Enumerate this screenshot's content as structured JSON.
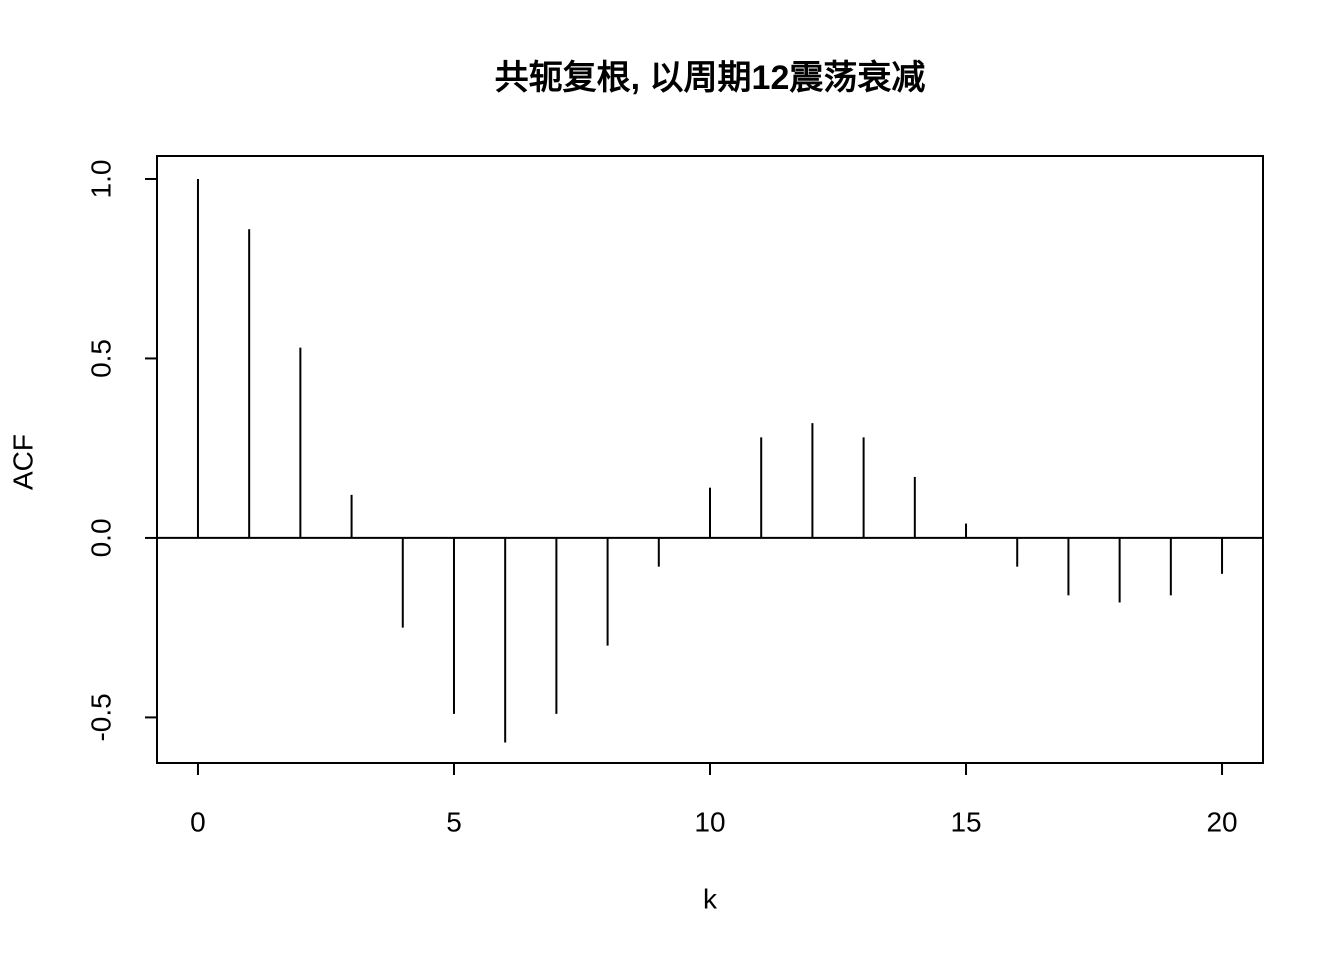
{
  "chart_data": {
    "type": "stem",
    "title": "共轭复根, 以周期12震荡衰减",
    "x_label": "k",
    "y_label": "ACF",
    "x": [
      0,
      1,
      2,
      3,
      4,
      5,
      6,
      7,
      8,
      9,
      10,
      11,
      12,
      13,
      14,
      15,
      16,
      17,
      18,
      19,
      20
    ],
    "values": [
      1.0,
      0.86,
      0.53,
      0.12,
      -0.25,
      -0.49,
      -0.57,
      -0.49,
      -0.3,
      -0.08,
      0.14,
      0.28,
      0.32,
      0.28,
      0.17,
      0.04,
      -0.08,
      -0.16,
      -0.18,
      -0.16,
      -0.1
    ],
    "color": "#000000",
    "xlim": [
      -0.8,
      20.8
    ],
    "ylim": [
      -0.627,
      1.064
    ],
    "xticks": [
      0,
      5,
      10,
      15,
      20
    ],
    "yticks": [
      {
        "value": -0.5,
        "label": "-0.5"
      },
      {
        "value": 0,
        "label": "0.0"
      },
      {
        "value": 0.5,
        "label": "0.5"
      },
      {
        "value": 1,
        "label": "1.0"
      }
    ],
    "grid": false
  }
}
